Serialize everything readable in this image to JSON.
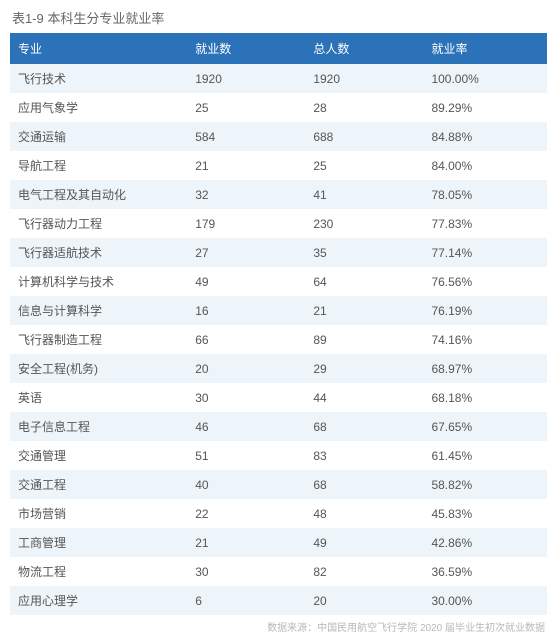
{
  "title": "表1-9 本科生分专业就业率",
  "columns": [
    "专业",
    "就业数",
    "总人数",
    "就业率"
  ],
  "rows": [
    [
      "飞行技术",
      "1920",
      "1920",
      "100.00%"
    ],
    [
      "应用气象学",
      "25",
      "28",
      "89.29%"
    ],
    [
      "交通运输",
      "584",
      "688",
      "84.88%"
    ],
    [
      "导航工程",
      "21",
      "25",
      "84.00%"
    ],
    [
      "电气工程及其自动化",
      "32",
      "41",
      "78.05%"
    ],
    [
      "飞行器动力工程",
      "179",
      "230",
      "77.83%"
    ],
    [
      "飞行器适航技术",
      "27",
      "35",
      "77.14%"
    ],
    [
      "计算机科学与技术",
      "49",
      "64",
      "76.56%"
    ],
    [
      "信息与计算科学",
      "16",
      "21",
      "76.19%"
    ],
    [
      "飞行器制造工程",
      "66",
      "89",
      "74.16%"
    ],
    [
      "安全工程(机务)",
      "20",
      "29",
      "68.97%"
    ],
    [
      "英语",
      "30",
      "44",
      "68.18%"
    ],
    [
      "电子信息工程",
      "46",
      "68",
      "67.65%"
    ],
    [
      "交通管理",
      "51",
      "83",
      "61.45%"
    ],
    [
      "交通工程",
      "40",
      "68",
      "58.82%"
    ],
    [
      "市场营销",
      "22",
      "48",
      "45.83%"
    ],
    [
      "工商管理",
      "21",
      "49",
      "42.86%"
    ],
    [
      "物流工程",
      "30",
      "82",
      "36.59%"
    ],
    [
      "应用心理学",
      "6",
      "20",
      "30.00%"
    ]
  ],
  "footnote": "数据来源：中国民用航空飞行学院 2020 届毕业生初次就业数据",
  "colors": {
    "header_bg": "#2b72b9",
    "header_text": "#ffffff",
    "row_even_bg": "#eef5fa",
    "row_odd_bg": "#ffffff",
    "cell_text": "#555555",
    "title_text": "#666666",
    "footnote_text": "#b8b8b8"
  },
  "font_sizes": {
    "title": 13,
    "header": 12,
    "cell": 12,
    "footnote": 10
  }
}
